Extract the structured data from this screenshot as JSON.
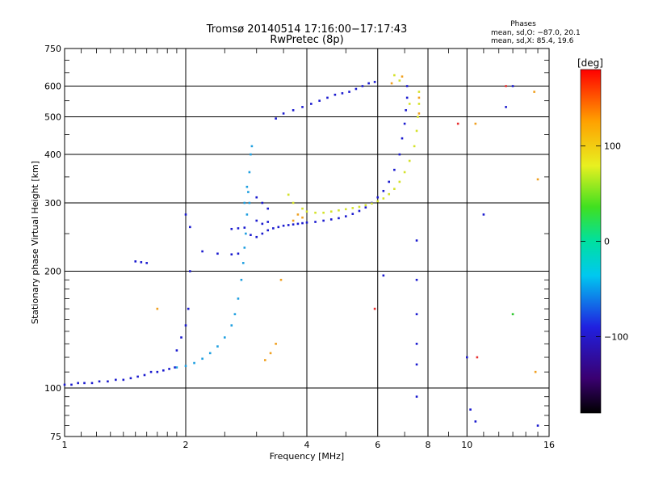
{
  "chart_data": {
    "type": "scatter",
    "title": "Tromsø 20140514 17:16:00−17:17:43",
    "subtitle": "RwPretec (8p)",
    "xlabel": "Frequency [MHz]",
    "ylabel": "Stationary phase Virtual Height [km]",
    "x_scale": "log",
    "y_scale": "log",
    "xlim": [
      1,
      16
    ],
    "ylim": [
      75,
      750
    ],
    "x_ticks": [
      1,
      2,
      4,
      6,
      8,
      10,
      16
    ],
    "x_tick_labels": [
      "1",
      "2",
      "4",
      "6",
      "8",
      "10",
      "16"
    ],
    "y_ticks": [
      75,
      100,
      200,
      300,
      400,
      500,
      600,
      750
    ],
    "y_tick_labels": [
      "75",
      "100",
      "200",
      "300",
      "400",
      "500",
      "600",
      "750"
    ],
    "grid": true,
    "colorbar": {
      "label": "[deg]",
      "range": [
        -180,
        180
      ],
      "ticks": [
        100,
        0,
        -100
      ],
      "tick_labels": [
        "100",
        "0",
        "−100"
      ]
    },
    "phase_stats": {
      "heading": "Phases",
      "line_o": "mean, sd,O: −87.0, 20.1",
      "line_x": "mean, sd,X:  85.4, 19.6"
    },
    "series": [
      {
        "color": "#1a1acf",
        "points": [
          [
            1.0,
            102
          ],
          [
            1.04,
            102
          ],
          [
            1.08,
            103
          ],
          [
            1.12,
            103
          ],
          [
            1.17,
            103
          ],
          [
            1.22,
            104
          ],
          [
            1.28,
            104
          ],
          [
            1.34,
            105
          ],
          [
            1.4,
            105
          ],
          [
            1.46,
            106
          ],
          [
            1.52,
            107
          ],
          [
            1.58,
            108
          ],
          [
            1.64,
            110
          ],
          [
            1.7,
            110
          ],
          [
            1.76,
            111
          ],
          [
            1.82,
            112
          ],
          [
            1.88,
            113
          ],
          [
            2.6,
            257
          ],
          [
            2.7,
            258
          ],
          [
            2.8,
            259
          ],
          [
            2.9,
            248
          ],
          [
            3.0,
            245
          ],
          [
            3.1,
            250
          ],
          [
            3.2,
            255
          ],
          [
            3.3,
            258
          ],
          [
            3.4,
            260
          ],
          [
            3.5,
            262
          ],
          [
            3.6,
            263
          ],
          [
            3.7,
            264
          ],
          [
            3.8,
            265
          ],
          [
            3.9,
            266
          ],
          [
            4.0,
            267
          ],
          [
            4.2,
            268
          ],
          [
            4.4,
            270
          ],
          [
            4.6,
            272
          ],
          [
            4.8,
            274
          ],
          [
            5.0,
            277
          ],
          [
            5.2,
            281
          ],
          [
            5.4,
            286
          ],
          [
            5.6,
            292
          ],
          [
            5.8,
            300
          ],
          [
            6.0,
            310
          ],
          [
            6.2,
            322
          ],
          [
            6.4,
            340
          ],
          [
            6.6,
            365
          ],
          [
            6.8,
            400
          ],
          [
            6.9,
            440
          ],
          [
            7.0,
            480
          ],
          [
            7.05,
            520
          ],
          [
            7.1,
            560
          ],
          [
            7.1,
            600
          ],
          [
            3.35,
            495
          ],
          [
            3.5,
            510
          ],
          [
            3.7,
            520
          ],
          [
            3.9,
            530
          ],
          [
            4.1,
            540
          ],
          [
            4.3,
            550
          ],
          [
            4.5,
            560
          ],
          [
            4.7,
            570
          ],
          [
            4.9,
            575
          ],
          [
            5.1,
            580
          ],
          [
            5.3,
            590
          ],
          [
            5.5,
            600
          ],
          [
            5.7,
            610
          ],
          [
            5.9,
            615
          ],
          [
            1.5,
            212
          ],
          [
            1.55,
            211
          ],
          [
            1.6,
            210
          ],
          [
            2.0,
            280
          ],
          [
            2.05,
            260
          ],
          [
            2.05,
            200
          ],
          [
            2.03,
            160
          ],
          [
            1.9,
            125
          ],
          [
            1.95,
            135
          ],
          [
            2.0,
            145
          ],
          [
            2.2,
            225
          ],
          [
            2.4,
            222
          ],
          [
            2.6,
            221
          ],
          [
            2.7,
            222
          ],
          [
            3.0,
            310
          ],
          [
            3.1,
            300
          ],
          [
            3.2,
            290
          ],
          [
            3.0,
            270
          ],
          [
            3.1,
            265
          ],
          [
            3.2,
            268
          ],
          [
            6.2,
            195
          ],
          [
            7.5,
            240
          ],
          [
            7.5,
            190
          ],
          [
            7.5,
            155
          ],
          [
            7.5,
            130
          ],
          [
            7.5,
            115
          ],
          [
            7.5,
            95
          ],
          [
            10.0,
            120
          ],
          [
            10.5,
            82
          ],
          [
            10.2,
            88
          ],
          [
            11.0,
            280
          ],
          [
            15.0,
            80
          ],
          [
            12.5,
            530
          ],
          [
            13.0,
            600
          ]
        ]
      },
      {
        "color": "#1e9fe0",
        "points": [
          [
            1.9,
            113
          ],
          [
            2.0,
            114
          ],
          [
            2.1,
            116
          ],
          [
            2.2,
            119
          ],
          [
            2.3,
            123
          ],
          [
            2.4,
            128
          ],
          [
            2.5,
            135
          ],
          [
            2.6,
            145
          ],
          [
            2.65,
            155
          ],
          [
            2.7,
            170
          ],
          [
            2.75,
            190
          ],
          [
            2.78,
            210
          ],
          [
            2.8,
            230
          ],
          [
            2.82,
            250
          ],
          [
            2.84,
            280
          ],
          [
            2.86,
            320
          ],
          [
            2.88,
            360
          ],
          [
            2.9,
            400
          ],
          [
            2.92,
            420
          ],
          [
            2.88,
            300
          ],
          [
            2.84,
            330
          ],
          [
            2.8,
            300
          ]
        ]
      },
      {
        "color": "#d4e22a",
        "points": [
          [
            3.6,
            315
          ],
          [
            3.7,
            300
          ],
          [
            3.9,
            290
          ],
          [
            4.0,
            285
          ],
          [
            4.2,
            283
          ],
          [
            4.4,
            283
          ],
          [
            4.6,
            285
          ],
          [
            4.8,
            287
          ],
          [
            5.0,
            289
          ],
          [
            5.2,
            291
          ],
          [
            5.4,
            293
          ],
          [
            5.6,
            296
          ],
          [
            5.8,
            299
          ],
          [
            6.0,
            303
          ],
          [
            6.2,
            308
          ],
          [
            6.4,
            316
          ],
          [
            6.6,
            326
          ],
          [
            6.8,
            340
          ],
          [
            7.0,
            360
          ],
          [
            7.2,
            385
          ],
          [
            7.4,
            420
          ],
          [
            7.5,
            460
          ],
          [
            7.55,
            500
          ],
          [
            7.6,
            540
          ],
          [
            7.6,
            580
          ],
          [
            6.6,
            640
          ],
          [
            6.8,
            620
          ],
          [
            7.2,
            540
          ]
        ]
      },
      {
        "color": "#f0a020",
        "points": [
          [
            3.15,
            118
          ],
          [
            3.25,
            123
          ],
          [
            3.35,
            130
          ],
          [
            3.45,
            190
          ],
          [
            3.7,
            270
          ],
          [
            3.8,
            280
          ],
          [
            3.9,
            275
          ],
          [
            1.7,
            160
          ],
          [
            7.6,
            510
          ],
          [
            7.6,
            560
          ],
          [
            6.9,
            635
          ],
          [
            6.5,
            610
          ],
          [
            10.5,
            480
          ],
          [
            14.8,
            110
          ],
          [
            15.0,
            345
          ],
          [
            14.7,
            580
          ]
        ]
      },
      {
        "color": "#e83030",
        "points": [
          [
            5.9,
            160
          ],
          [
            10.6,
            120
          ],
          [
            9.5,
            480
          ],
          [
            12.5,
            600
          ]
        ]
      },
      {
        "color": "#30c830",
        "points": [
          [
            13.0,
            155
          ]
        ]
      }
    ]
  }
}
